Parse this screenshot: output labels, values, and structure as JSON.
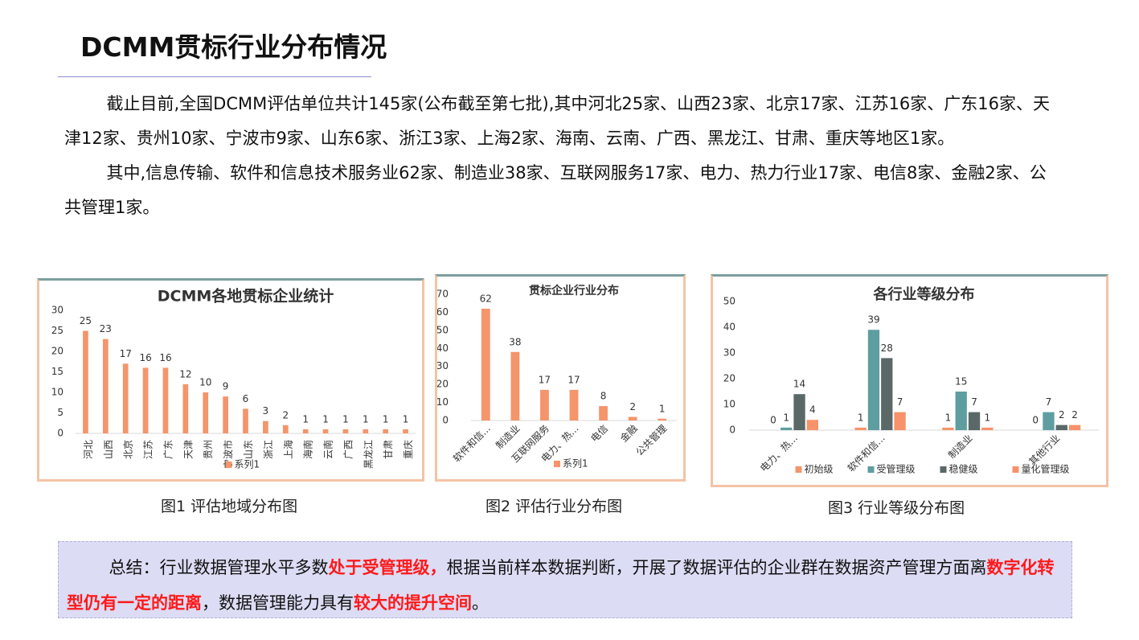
{
  "title": "DCMM贯标行业分布情况",
  "paragraphs": [
    "截止目前,全国DCMM评估单位共计145家(公布截至第七批),其中河北25家、山西23家、北京17家、江苏16家、广东16家、天津12家、贵州10家、宁波市9家、山东6家、浙江3家、上海2家、海南、云南、广西、黑龙江、甘肃、重庆等地区1家。",
    "其中,信息传输、软件和信息技术服务业62家、制造业38家、互联网服务17家、电力、热力行业17家、电信8家、金融2家、公共管理1家。"
  ],
  "chart_data": [
    {
      "type": "bar",
      "title": "DCMM各地贯标企业统计",
      "categories": [
        "河北",
        "山西",
        "北京",
        "江苏",
        "广东",
        "天津",
        "贵州",
        "宁波市",
        "山东",
        "浙江",
        "上海",
        "海南",
        "云南",
        "广西",
        "黑龙江",
        "甘肃",
        "重庆"
      ],
      "series": [
        {
          "name": "系列1",
          "color": "#f4956b",
          "values": [
            25,
            23,
            17,
            16,
            16,
            12,
            10,
            9,
            6,
            3,
            2,
            1,
            1,
            1,
            1,
            1,
            1
          ]
        }
      ],
      "ylim": [
        0,
        30
      ],
      "yticks": [
        0,
        5,
        10,
        15,
        20,
        25,
        30
      ]
    },
    {
      "type": "bar",
      "title": "贯标企业行业分布",
      "categories": [
        "软件和信...",
        "制造业",
        "互联网服务",
        "电力、热...",
        "电信",
        "金融",
        "公共管理"
      ],
      "series": [
        {
          "name": "系列1",
          "color": "#f4956b",
          "values": [
            62,
            38,
            17,
            17,
            8,
            2,
            1
          ]
        }
      ],
      "ylim": [
        0,
        70
      ],
      "yticks": [
        0,
        10,
        20,
        30,
        40,
        50,
        60,
        70
      ]
    },
    {
      "type": "bar",
      "title": "各行业等级分布",
      "categories": [
        "电力、热...",
        "软件和信...",
        "制造业",
        "其他行业"
      ],
      "series": [
        {
          "name": "初始级",
          "color": "#f4956b",
          "values": [
            0,
            1,
            1,
            0
          ]
        },
        {
          "name": "受管理级",
          "color": "#5f9ea0",
          "values": [
            1,
            39,
            15,
            7
          ]
        },
        {
          "name": "稳健级",
          "color": "#5b6868",
          "values": [
            14,
            28,
            7,
            2
          ]
        },
        {
          "name": "量化管理级",
          "color": "#f7926a",
          "values": [
            4,
            7,
            1,
            2
          ]
        }
      ],
      "ylim": [
        0,
        50
      ],
      "yticks": [
        0,
        10,
        20,
        30,
        40,
        50
      ]
    }
  ],
  "captions": [
    "图1 评估地域分布图",
    "图2 评估行业分布图",
    "图3 行业等级分布图"
  ],
  "summary": [
    {
      "text": "总结：行业数据管理水平多数",
      "emphasis": false
    },
    {
      "text": "处于受管理级，",
      "emphasis": true
    },
    {
      "text": "根据当前样本数据判断，开展了数据评估的企业群在数据资产管理方面离",
      "emphasis": false
    },
    {
      "text": "数字化转型仍有一定的距离",
      "emphasis": true
    },
    {
      "text": "，数据管理能力具有",
      "emphasis": false
    },
    {
      "text": "较大的提升空间",
      "emphasis": true
    },
    {
      "text": "。",
      "emphasis": false
    }
  ]
}
